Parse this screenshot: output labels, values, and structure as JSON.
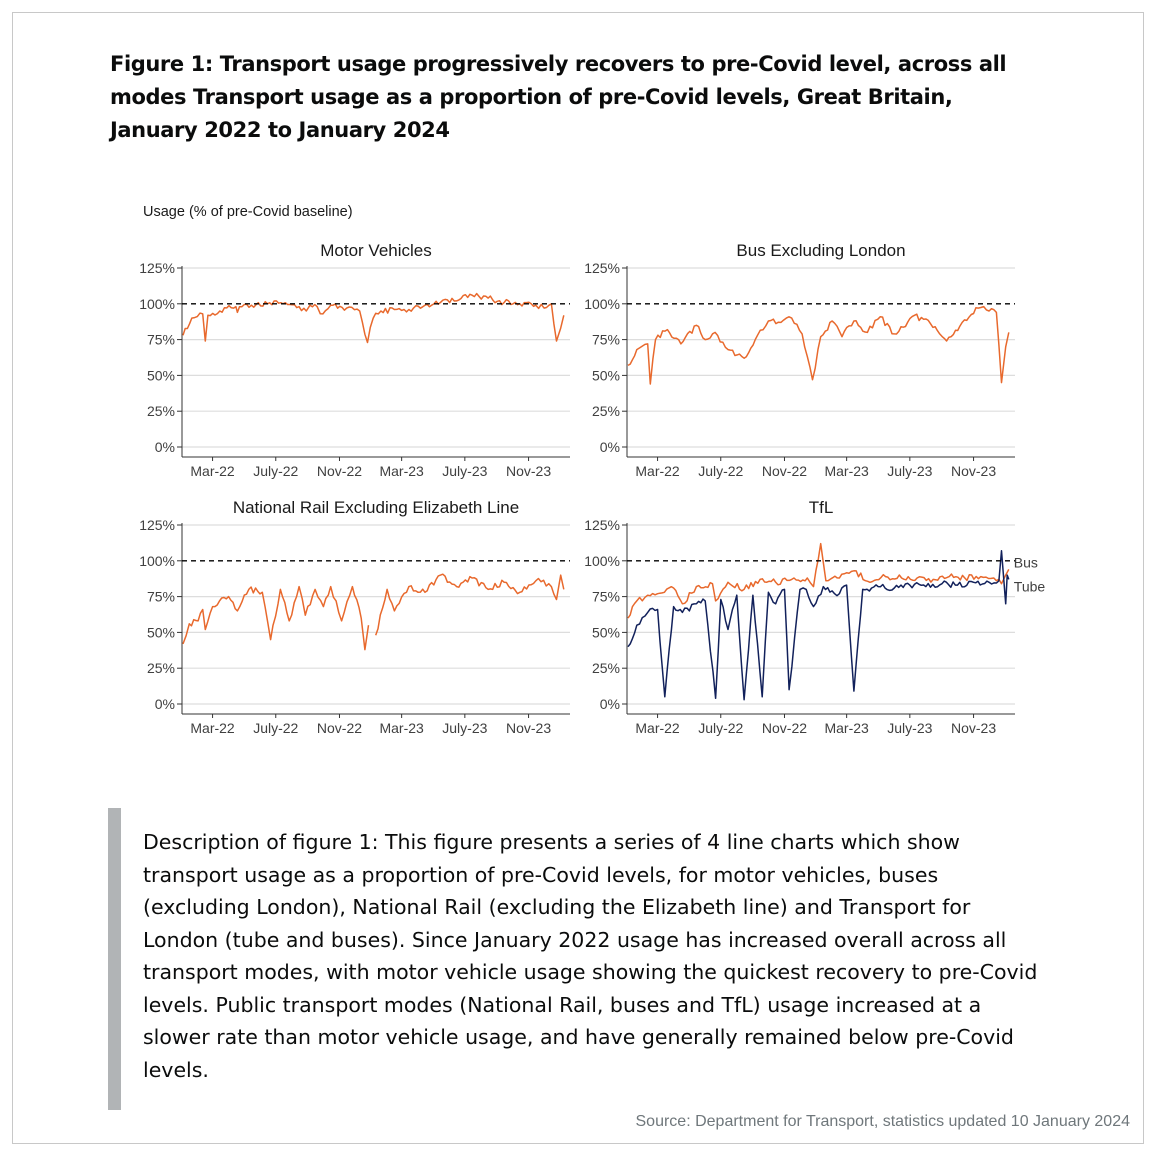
{
  "title": "Figure 1: Transport usage progressively recovers to pre-Covid level, across all modes Transport usage as a proportion of pre-Covid levels, Great Britain, January 2022 to January 2024",
  "y_axis_label": "Usage (% of pre-Covid baseline)",
  "description": "Description of figure 1: This figure presents a series of 4 line charts which show transport usage as a proportion of pre-Covid levels, for motor vehicles, buses (excluding London), National Rail (excluding the Elizabeth line) and Transport for London (tube and buses). Since January 2022 usage has increased overall across all transport modes, with motor vehicle usage showing the quickest recovery to pre-Covid levels. Public transport modes (National Rail, buses and TfL) usage increased at a slower rate than motor vehicle usage, and have generally remained below pre-Covid levels.",
  "source": "Source: Department for Transport, statistics updated 10 January 2024",
  "colors": {
    "orange": "#e8692d",
    "navy": "#12215b",
    "reference_line": "#000000",
    "grid": "#dddddd"
  },
  "chart_data": [
    {
      "type": "line",
      "title": "Motor Vehicles",
      "x_ticks": [
        "Mar-22",
        "July-22",
        "Nov-22",
        "Mar-23",
        "July-23",
        "Nov-23"
      ],
      "y_ticks": [
        "0%",
        "25%",
        "50%",
        "75%",
        "100%",
        "125%"
      ],
      "ylim": [
        0,
        125
      ],
      "reference_line": 100,
      "series": [
        {
          "color": "#e8692d",
          "x": [
            "2022-01-03",
            "2022-01-20",
            "2022-02-10",
            "2022-02-15",
            "2022-02-20",
            "2022-03-15",
            "2022-04-15",
            "2022-04-18",
            "2022-04-22",
            "2022-05-15",
            "2022-06-15",
            "2022-07-15",
            "2022-08-15",
            "2022-08-29",
            "2022-09-05",
            "2022-09-19",
            "2022-09-25",
            "2022-10-15",
            "2022-11-15",
            "2022-12-10",
            "2022-12-25",
            "2023-01-05",
            "2023-01-20",
            "2023-02-15",
            "2023-03-15",
            "2023-04-15",
            "2023-05-15",
            "2023-06-15",
            "2023-07-15",
            "2023-08-15",
            "2023-09-15",
            "2023-10-15",
            "2023-11-15",
            "2023-12-01",
            "2023-12-15",
            "2023-12-25",
            "2024-01-02",
            "2024-01-08"
          ],
          "y": [
            78,
            90,
            93,
            74,
            92,
            95,
            98,
            94,
            98,
            99,
            100,
            100,
            98,
            95,
            99,
            98,
            93,
            99,
            97,
            95,
            73,
            90,
            95,
            96,
            96,
            99,
            101,
            102,
            106,
            104,
            101,
            100,
            99,
            97,
            100,
            74,
            83,
            92
          ]
        }
      ]
    },
    {
      "type": "line",
      "title": "Bus Excluding London",
      "x_ticks": [
        "Mar-22",
        "July-22",
        "Nov-22",
        "Mar-23",
        "July-23",
        "Nov-23"
      ],
      "y_ticks": [
        "0%",
        "25%",
        "50%",
        "75%",
        "100%",
        "125%"
      ],
      "ylim": [
        0,
        125
      ],
      "reference_line": 100,
      "series": [
        {
          "color": "#e8692d",
          "x": [
            "2022-01-03",
            "2022-01-20",
            "2022-02-10",
            "2022-02-15",
            "2022-02-25",
            "2022-03-20",
            "2022-04-15",
            "2022-05-15",
            "2022-06-01",
            "2022-06-20",
            "2022-07-15",
            "2022-08-15",
            "2022-09-10",
            "2022-10-01",
            "2022-10-25",
            "2022-11-15",
            "2022-12-05",
            "2022-12-25",
            "2023-01-10",
            "2023-02-01",
            "2023-02-20",
            "2023-03-15",
            "2023-04-10",
            "2023-05-05",
            "2023-06-01",
            "2023-07-10",
            "2023-08-10",
            "2023-09-10",
            "2023-10-10",
            "2023-11-10",
            "2023-12-01",
            "2023-12-15",
            "2023-12-25",
            "2024-01-02",
            "2024-01-08"
          ],
          "y": [
            57,
            68,
            72,
            44,
            75,
            82,
            72,
            85,
            75,
            80,
            68,
            62,
            78,
            88,
            87,
            90,
            79,
            47,
            77,
            88,
            77,
            88,
            80,
            91,
            79,
            92,
            86,
            74,
            87,
            97,
            95,
            94,
            45,
            70,
            80
          ]
        }
      ]
    },
    {
      "type": "line",
      "title": "National Rail Excluding Elizabeth Line",
      "x_ticks": [
        "Mar-22",
        "July-22",
        "Nov-22",
        "Mar-23",
        "July-23",
        "Nov-23"
      ],
      "y_ticks": [
        "0%",
        "25%",
        "50%",
        "75%",
        "100%",
        "125%"
      ],
      "ylim": [
        0,
        125
      ],
      "reference_line": 100,
      "series": [
        {
          "color": "#e8692d",
          "x": [
            "2022-01-03",
            "2022-01-15",
            "2022-02-01",
            "2022-02-10",
            "2022-02-15",
            "2022-03-01",
            "2022-04-01",
            "2022-04-18",
            "2022-05-10",
            "2022-06-05",
            "2022-06-21",
            "2022-07-10",
            "2022-07-27",
            "2022-08-15",
            "2022-08-27",
            "2022-09-15",
            "2022-10-01",
            "2022-10-15",
            "2022-11-05",
            "2022-11-26",
            "2022-12-13",
            "2022-12-20",
            "2022-12-27",
            "2023-01-04",
            "2023-01-10",
            "2023-02-01",
            "2023-02-15",
            "2023-03-15",
            "2023-04-15",
            "2023-05-15",
            "2023-06-15",
            "2023-07-15",
            "2023-08-15",
            "2023-09-15",
            "2023-10-15",
            "2023-11-15",
            "2023-12-10",
            "2023-12-25",
            "2024-01-02",
            "2024-01-08"
          ],
          "y": [
            42,
            56,
            58,
            66,
            52,
            68,
            75,
            65,
            80,
            78,
            45,
            80,
            58,
            82,
            62,
            80,
            68,
            82,
            58,
            82,
            60,
            38,
            55,
            null,
            48,
            80,
            65,
            82,
            78,
            90,
            82,
            88,
            80,
            85,
            78,
            86,
            84,
            73,
            90,
            80
          ]
        }
      ]
    },
    {
      "type": "line",
      "title": "TfL",
      "x_ticks": [
        "Mar-22",
        "July-22",
        "Nov-22",
        "Mar-23",
        "July-23",
        "Nov-23"
      ],
      "y_ticks": [
        "0%",
        "25%",
        "50%",
        "75%",
        "100%",
        "125%"
      ],
      "ylim": [
        0,
        125
      ],
      "reference_line": 100,
      "series": [
        {
          "name": "Bus",
          "color": "#e8692d",
          "x": [
            "2022-01-03",
            "2022-01-20",
            "2022-02-10",
            "2022-03-01",
            "2022-04-01",
            "2022-04-18",
            "2022-05-15",
            "2022-06-15",
            "2022-06-21",
            "2022-07-15",
            "2022-08-15",
            "2022-09-15",
            "2022-10-15",
            "2022-11-15",
            "2022-12-15",
            "2022-12-27",
            "2023-01-10",
            "2023-01-20",
            "2023-02-15",
            "2023-03-15",
            "2023-04-15",
            "2023-05-15",
            "2023-06-15",
            "2023-07-15",
            "2023-08-15",
            "2023-09-15",
            "2023-10-15",
            "2023-11-15",
            "2023-12-10",
            "2023-12-25",
            "2024-01-02",
            "2024-01-08"
          ],
          "y": [
            60,
            72,
            76,
            77,
            81,
            70,
            82,
            84,
            72,
            85,
            80,
            87,
            85,
            87,
            88,
            82,
            112,
            86,
            88,
            93,
            85,
            89,
            88,
            88,
            87,
            89,
            88,
            89,
            88,
            84,
            90,
            94
          ]
        },
        {
          "name": "Tube",
          "color": "#12215b",
          "x": [
            "2022-01-03",
            "2022-01-20",
            "2022-02-10",
            "2022-03-01",
            "2022-03-15",
            "2022-04-01",
            "2022-04-18",
            "2022-05-15",
            "2022-06-01",
            "2022-06-21",
            "2022-07-01",
            "2022-07-15",
            "2022-08-01",
            "2022-08-15",
            "2022-09-01",
            "2022-09-19",
            "2022-10-01",
            "2022-10-15",
            "2022-11-01",
            "2022-11-10",
            "2022-12-01",
            "2022-12-13",
            "2022-12-27",
            "2023-01-15",
            "2023-02-01",
            "2023-02-15",
            "2023-03-01",
            "2023-03-15",
            "2023-04-01",
            "2023-05-01",
            "2023-06-01",
            "2023-07-01",
            "2023-08-01",
            "2023-09-01",
            "2023-10-01",
            "2023-11-01",
            "2023-12-01",
            "2023-12-20",
            "2023-12-25",
            "2024-01-02",
            "2024-01-05",
            "2024-01-08"
          ],
          "y": [
            40,
            55,
            64,
            66,
            5,
            68,
            64,
            70,
            72,
            4,
            73,
            52,
            76,
            3,
            76,
            5,
            78,
            70,
            80,
            10,
            80,
            80,
            68,
            82,
            79,
            77,
            83,
            9,
            80,
            82,
            81,
            83,
            82,
            84,
            83,
            85,
            85,
            86,
            107,
            70,
            90,
            87
          ]
        }
      ]
    }
  ]
}
